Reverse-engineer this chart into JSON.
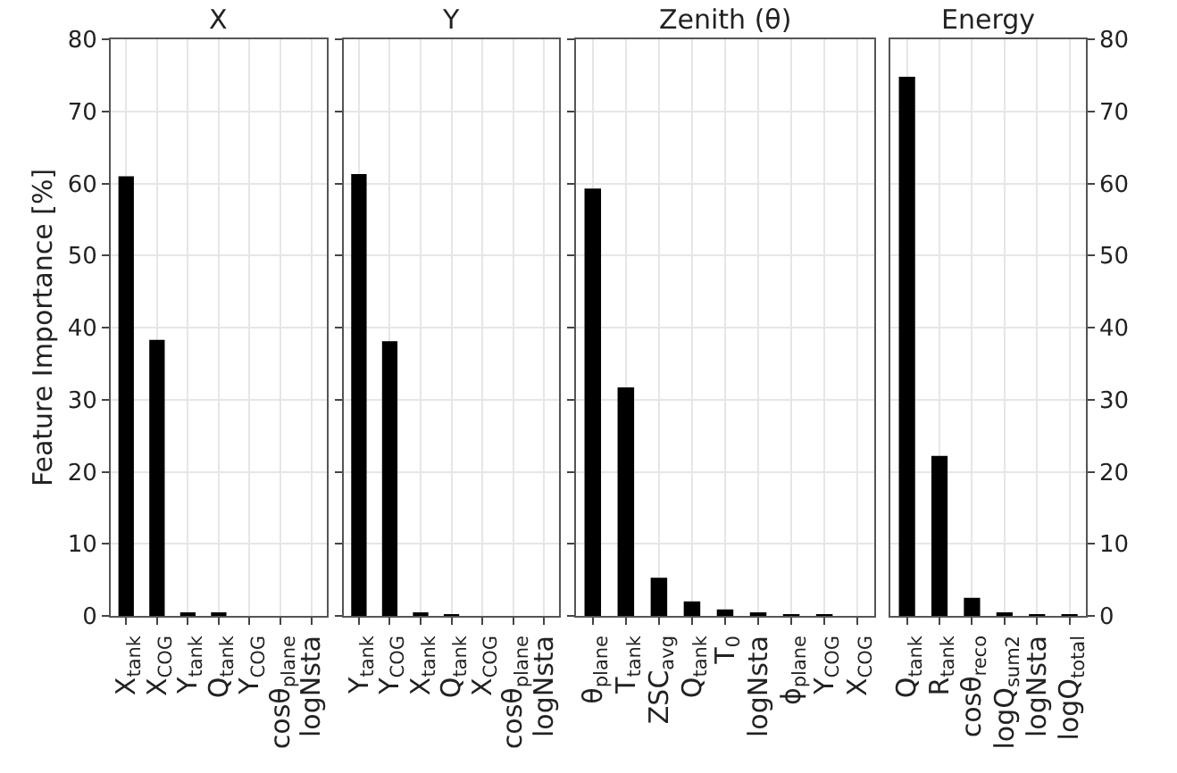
{
  "chart_data": [
    {
      "type": "bar",
      "title": "X",
      "ylabel": "Feature Importance [%]",
      "categories": [
        "X$_{tank}$",
        "X$_{COG}$",
        "Y$_{tank}$",
        "Q$_{tank}$",
        "Y$_{COG}$",
        "cosθ$_{plane}$",
        "logNsta"
      ],
      "values": [
        61,
        38.3,
        0.3,
        0.3,
        0,
        0,
        0
      ],
      "color": "#000000",
      "ylim": [
        0,
        80
      ],
      "yticks": [
        0,
        10,
        20,
        30,
        40,
        50,
        60,
        70,
        80
      ],
      "grid": true
    },
    {
      "type": "bar",
      "title": "Y",
      "categories": [
        "Y$_{tank}$",
        "Y$_{COG}$",
        "X$_{tank}$",
        "Q$_{tank}$",
        "X$_{COG}$",
        "cosθ$_{plane}$",
        "logNsta"
      ],
      "values": [
        61.3,
        38.1,
        0.3,
        0.2,
        0,
        0,
        0
      ],
      "color": "#000000",
      "ylim": [
        0,
        80
      ],
      "yticks": [
        0,
        10,
        20,
        30,
        40,
        50,
        60,
        70,
        80
      ],
      "grid": true,
      "tick_labels": "x"
    },
    {
      "type": "bar",
      "title": "Zenith (θ)",
      "categories": [
        "θ$_{plane}$",
        "T$_{tank}$",
        "ZSC$_{avg}$",
        "Q$_{tank}$",
        "T$_{0}$",
        "logNsta",
        "ϕ$_{plane}$",
        "Y$_{COG}$",
        "X$_{COG}$"
      ],
      "values": [
        59.3,
        31.7,
        5.3,
        2.0,
        0.9,
        0.5,
        0.1,
        0.1,
        0
      ],
      "color": "#000000",
      "ylim": [
        0,
        80
      ],
      "yticks": [
        0,
        10,
        20,
        30,
        40,
        50,
        60,
        70,
        80
      ],
      "grid": true,
      "tick_labels": "x"
    },
    {
      "type": "bar",
      "title": "Energy",
      "categories": [
        "Q$_{tank}$",
        "R$_{tank}$",
        "cosθ$_{reco}$",
        "logQ$_{sum2}$",
        "logNsta",
        "logQ$_{total}$"
      ],
      "values": [
        74.8,
        22.2,
        2.5,
        0.3,
        0.2,
        0.2
      ],
      "color": "#000000",
      "ylim": [
        0,
        80
      ],
      "yticks": [
        0,
        10,
        20,
        30,
        40,
        50,
        60,
        70,
        80
      ],
      "grid": true
    }
  ]
}
